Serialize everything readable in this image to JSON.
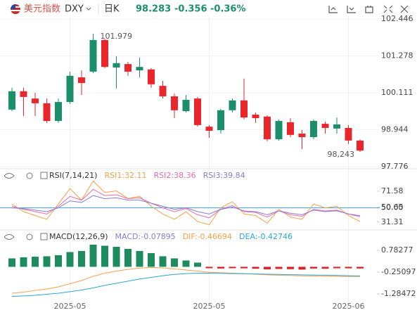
{
  "header": {
    "name": "美元指数",
    "symbol": "DXY",
    "period": "日K",
    "price": "98.283",
    "change": "-0.356",
    "change_pct": "-0.36%"
  },
  "chart_data": [
    {
      "type": "candlestick",
      "categories": [
        null,
        null,
        null,
        null,
        null,
        "2025-05",
        null,
        null,
        null,
        null,
        null,
        null,
        null,
        null,
        null,
        null,
        null,
        "2025-05",
        null,
        null,
        null,
        null,
        null,
        null,
        null,
        null,
        null,
        null,
        null,
        "2025-06",
        null
      ],
      "open": [
        99.58,
        100.16,
        99.93,
        99.78,
        99.22,
        99.82,
        100.6,
        100.78,
        101.78,
        100.91,
        101.02,
        100.82,
        100.85,
        100.33,
        100.0,
        99.53,
        99.93,
        99.04,
        98.93,
        99.56,
        99.87,
        99.42,
        99.36,
        98.64,
        99.18,
        98.82,
        98.71,
        99.13,
        98.98,
        99.0,
        98.6
      ],
      "high": [
        100.27,
        100.27,
        100.11,
        99.93,
        99.93,
        100.78,
        100.82,
        101.979,
        101.82,
        101.27,
        101.09,
        101.22,
        100.89,
        100.49,
        100.09,
        100.04,
        99.98,
        99.09,
        99.6,
        99.93,
        100.56,
        99.49,
        99.4,
        99.27,
        99.31,
        98.93,
        99.27,
        99.2,
        99.33,
        99.09,
        98.64
      ],
      "low": [
        99.53,
        99.38,
        99.38,
        99.16,
        99.16,
        99.76,
        100.04,
        100.73,
        100.89,
        100.25,
        100.65,
        100.6,
        100.27,
        99.93,
        99.31,
        99.49,
        99.04,
        98.69,
        98.82,
        99.49,
        99.27,
        99.16,
        98.58,
        98.6,
        98.71,
        98.33,
        98.64,
        98.82,
        98.82,
        98.49,
        98.243
      ],
      "close": [
        100.16,
        99.98,
        99.78,
        99.22,
        99.82,
        100.65,
        100.42,
        101.78,
        100.93,
        101.05,
        100.78,
        100.93,
        100.38,
        100.0,
        99.56,
        99.89,
        99.09,
        98.91,
        99.56,
        99.87,
        99.33,
        99.31,
        98.64,
        99.22,
        98.78,
        98.71,
        99.22,
        99.0,
        99.11,
        98.6,
        98.283
      ],
      "up_color": "#1a8f6a",
      "down_color": "#e8262b",
      "annotations": [
        {
          "text": "101.979",
          "at": "high"
        },
        {
          "text": "98,243",
          "at": "low"
        }
      ],
      "ylim": [
        97.709,
        102.557
      ],
      "yticks": [
        102.446,
        101.278,
        100.111,
        98.944,
        97.776
      ],
      "grid": true
    },
    {
      "type": "line",
      "title": "RSI(7,14,21)",
      "series": [
        {
          "name": "RSI1:32.11",
          "color": "#f5a04a",
          "values": [
            55,
            45,
            40,
            35,
            55,
            75,
            60,
            85,
            70,
            72,
            62,
            65,
            52,
            42,
            35,
            45,
            32,
            28,
            50,
            58,
            42,
            40,
            30,
            48,
            38,
            35,
            55,
            50,
            52,
            40,
            32.11
          ]
        },
        {
          "name": "RSI2:38.36",
          "color": "#e96ca4",
          "values": [
            52,
            48,
            45,
            42,
            52,
            65,
            60,
            74,
            66,
            67,
            62,
            63,
            56,
            50,
            45,
            49,
            41,
            37,
            48,
            53,
            45,
            44,
            38,
            46,
            41,
            39,
            48,
            46,
            47,
            42,
            38.36
          ]
        },
        {
          "name": "RSI3:39.84",
          "color": "#8c7ad6",
          "values": [
            50,
            49,
            47,
            45,
            50,
            59,
            57,
            66,
            62,
            63,
            60,
            60,
            56,
            52,
            48,
            50,
            45,
            42,
            48,
            51,
            46,
            45,
            41,
            46,
            43,
            41,
            47,
            45,
            46,
            42,
            39.84
          ]
        }
      ],
      "hline": {
        "value": 50,
        "color": "#3aa0d8"
      },
      "ylim": [
        25.8,
        84.4
      ],
      "yticks": [
        71.58,
        {
          "value": 50,
          "label": "50.00"
        },
        50.65,
        31.31
      ]
    },
    {
      "type": "macd",
      "title": "MACD(12,26,9)",
      "histogram": {
        "name": "MACD:-0.07895",
        "color": "#8c7ad6",
        "up_color": "#1e8b5e",
        "down_color": "#e02020",
        "values": [
          0.4,
          0.45,
          0.48,
          0.5,
          0.55,
          0.7,
          0.75,
          1.05,
          1.0,
          0.95,
          0.85,
          0.75,
          0.65,
          0.5,
          0.4,
          0.3,
          0.2,
          -0.05,
          -0.08,
          -0.06,
          -0.07,
          -0.09,
          -0.12,
          -0.1,
          -0.11,
          -0.13,
          -0.08,
          -0.09,
          -0.06,
          -0.07,
          -0.07895
        ]
      },
      "series": [
        {
          "name": "DIF:-0.46694",
          "color": "#f5a04a",
          "values": [
            -1.25,
            -1.2,
            -1.12,
            -1.05,
            -0.95,
            -0.8,
            -0.65,
            -0.45,
            -0.3,
            -0.2,
            -0.12,
            -0.06,
            -0.03,
            -0.05,
            -0.1,
            -0.15,
            -0.2,
            -0.26,
            -0.28,
            -0.3,
            -0.32,
            -0.35,
            -0.38,
            -0.4,
            -0.41,
            -0.43,
            -0.44,
            -0.45,
            -0.45,
            -0.46,
            -0.46694
          ]
        },
        {
          "name": "DEA:-0.42746",
          "color": "#2aa6d6",
          "values": [
            -1.4,
            -1.38,
            -1.35,
            -1.3,
            -1.25,
            -1.18,
            -1.1,
            -1.0,
            -0.88,
            -0.78,
            -0.68,
            -0.58,
            -0.5,
            -0.42,
            -0.36,
            -0.32,
            -0.3,
            -0.3,
            -0.31,
            -0.32,
            -0.33,
            -0.34,
            -0.35,
            -0.36,
            -0.37,
            -0.38,
            -0.39,
            -0.4,
            -0.41,
            -0.42,
            -0.42746
          ]
        }
      ],
      "ylim": [
        -1.518,
        1.316
      ],
      "yticks": [
        0.78277,
        -0.25097,
        -1.28472
      ]
    }
  ]
}
